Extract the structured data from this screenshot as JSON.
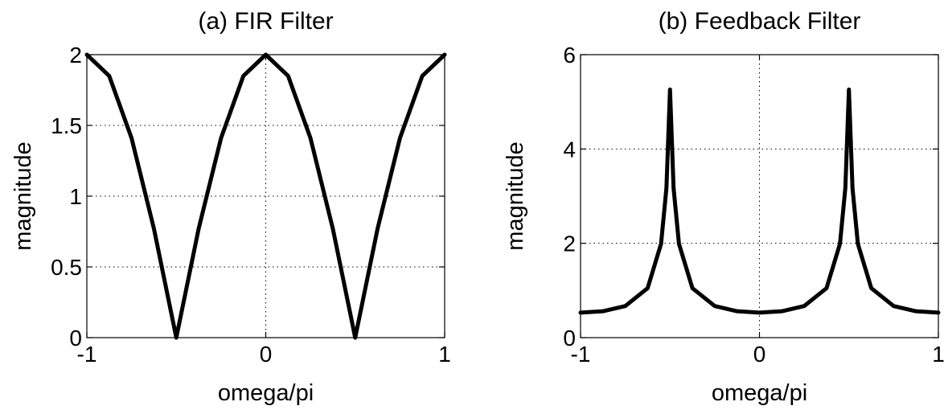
{
  "chart_data": [
    {
      "type": "line",
      "title": "(a) FIR Filter",
      "xlabel": "omega/pi",
      "ylabel": "magnitude",
      "xlim": [
        -1,
        1
      ],
      "ylim": [
        0,
        2
      ],
      "xticks": [
        -1,
        0,
        1
      ],
      "xtick_labels": [
        "-1",
        "0",
        "1"
      ],
      "yticks": [
        0,
        0.5,
        1,
        1.5,
        2
      ],
      "ytick_labels": [
        "0",
        "0.5",
        "1",
        "1.5",
        "2"
      ],
      "grid": true,
      "series": [
        {
          "x": [
            -1,
            -0.875,
            -0.75,
            -0.625,
            -0.5,
            -0.375,
            -0.25,
            -0.125,
            0,
            0.125,
            0.25,
            0.375,
            0.5,
            0.625,
            0.75,
            0.875,
            1
          ],
          "y": [
            2,
            1.85,
            1.41,
            0.77,
            0,
            0.77,
            1.41,
            1.85,
            2,
            1.85,
            1.41,
            0.77,
            0,
            0.77,
            1.41,
            1.85,
            2
          ]
        }
      ]
    },
    {
      "type": "line",
      "title": "(b) Feedback Filter",
      "xlabel": "omega/pi",
      "ylabel": "magnitude",
      "xlim": [
        -1,
        1
      ],
      "ylim": [
        0,
        6
      ],
      "xticks": [
        -1,
        0,
        1
      ],
      "xtick_labels": [
        "-1",
        "0",
        "1"
      ],
      "yticks": [
        0,
        2,
        4,
        6
      ],
      "ytick_labels": [
        "0",
        "2",
        "4",
        "6"
      ],
      "grid": true,
      "series": [
        {
          "x": [
            -1,
            -0.875,
            -0.75,
            -0.625,
            -0.55,
            -0.52,
            -0.5,
            -0.48,
            -0.45,
            -0.375,
            -0.25,
            -0.125,
            0,
            0.125,
            0.25,
            0.375,
            0.45,
            0.48,
            0.5,
            0.52,
            0.55,
            0.625,
            0.75,
            0.875,
            1
          ],
          "y": [
            0.53,
            0.56,
            0.67,
            1.05,
            1.99,
            3.17,
            5.26,
            3.17,
            1.99,
            1.05,
            0.67,
            0.56,
            0.53,
            0.56,
            0.67,
            1.05,
            1.99,
            3.17,
            5.26,
            3.17,
            1.99,
            1.05,
            0.67,
            0.56,
            0.53
          ]
        }
      ]
    }
  ]
}
